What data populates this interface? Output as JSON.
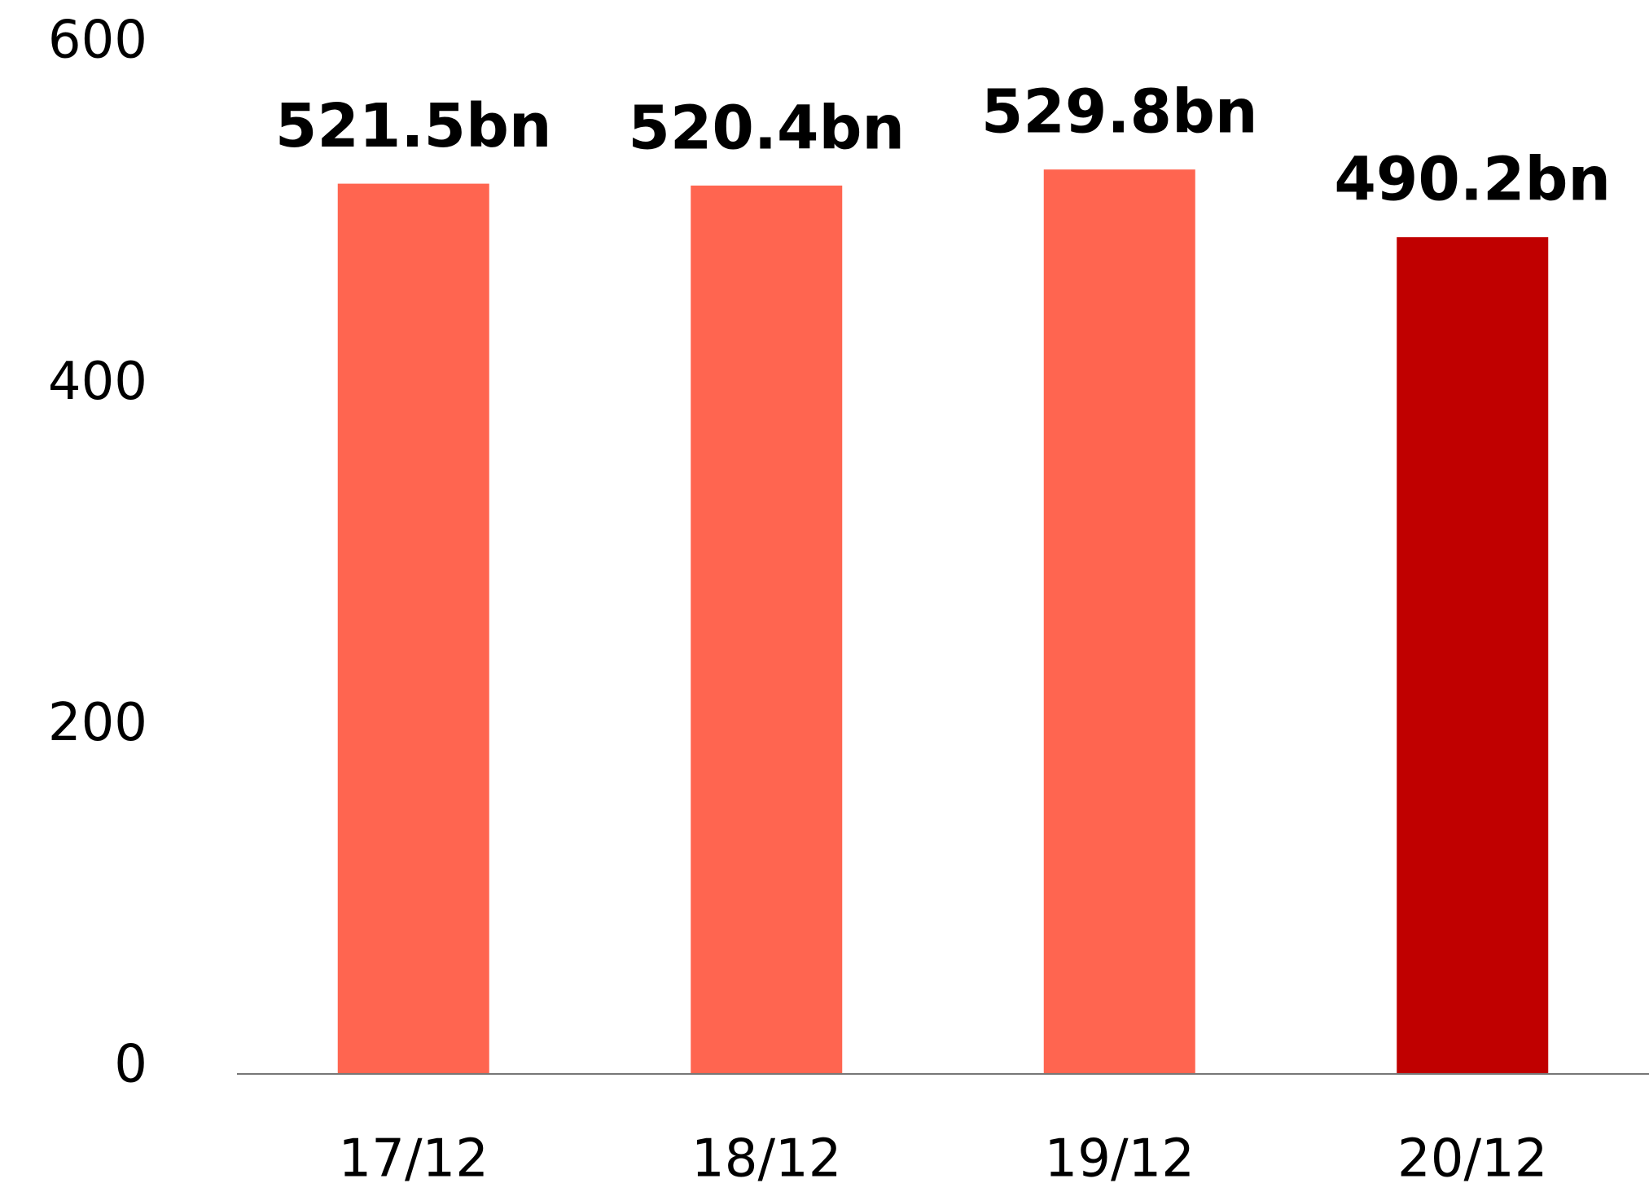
{
  "chart_data": {
    "type": "bar",
    "categories": [
      "17/12",
      "18/12",
      "19/12",
      "20/12"
    ],
    "values": [
      521.5,
      520.4,
      529.8,
      490.2
    ],
    "value_labels": [
      "521.5bn",
      "520.4bn",
      "529.8bn",
      "490.2bn"
    ],
    "colors": [
      "#ff6550",
      "#ff6550",
      "#ff6550",
      "#c00000"
    ],
    "ylim": [
      0,
      600
    ],
    "yticks": [
      0,
      200,
      400,
      600
    ],
    "grid": false
  }
}
